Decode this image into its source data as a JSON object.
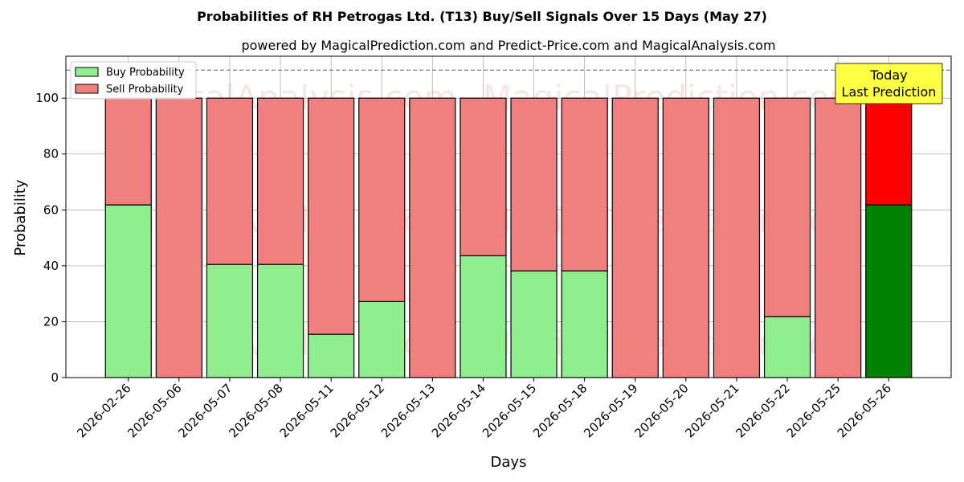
{
  "chart_data": {
    "type": "bar",
    "stacked": true,
    "title": "Probabilities of RH Petrogas Ltd. (T13) Buy/Sell Signals Over 15 Days (May 27)",
    "subtitle": "powered by MagicalPrediction.com and Predict-Price.com and MagicalAnalysis.com",
    "xlabel": "Days",
    "ylabel": "Probability",
    "ylim": [
      0,
      115
    ],
    "yticks": [
      0,
      20,
      40,
      60,
      80,
      100
    ],
    "grid": true,
    "reference_line": 110,
    "legend_position": "top-left",
    "categories": [
      "2026-02-26",
      "2026-05-06",
      "2026-05-07",
      "2026-05-08",
      "2026-05-11",
      "2026-05-12",
      "2026-05-13",
      "2026-05-14",
      "2026-05-15",
      "2026-05-18",
      "2026-05-19",
      "2026-05-20",
      "2026-05-21",
      "2026-05-22",
      "2026-05-25",
      "2026-05-26"
    ],
    "series": [
      {
        "name": "Buy Probability",
        "color": "#90ee90",
        "highlight_color": "#008000",
        "values": [
          61.8,
          0,
          40.5,
          40.5,
          15.5,
          27.2,
          0,
          43.6,
          38.2,
          38.2,
          0,
          0,
          0,
          21.8,
          0,
          61.8
        ]
      },
      {
        "name": "Sell Probability",
        "color": "#f08080",
        "highlight_color": "#ff0000",
        "values": [
          38.2,
          100,
          59.5,
          59.5,
          84.5,
          72.8,
          100,
          56.4,
          61.8,
          61.8,
          100,
          100,
          100,
          78.2,
          100,
          38.2
        ]
      }
    ],
    "annotation": {
      "lines": [
        "Today",
        "Last Prediction"
      ],
      "target_index": 15,
      "color": "#ffff44"
    },
    "watermarks": [
      "MagicalAnalysis.com",
      "MagicalPrediction.com"
    ]
  }
}
